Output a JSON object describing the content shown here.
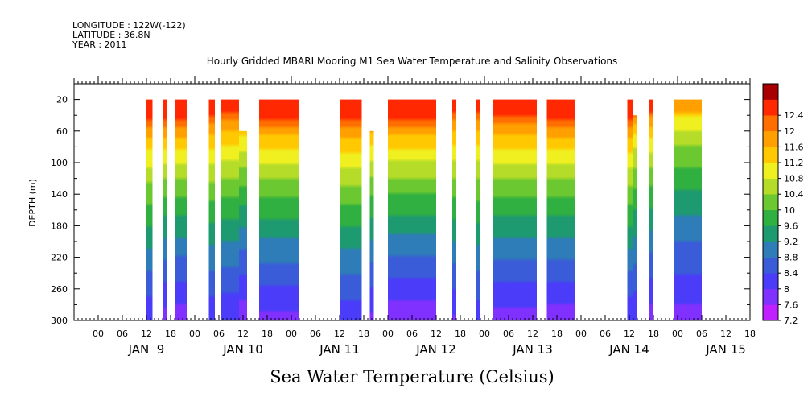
{
  "header": {
    "longitude": "LONGITUDE : 122W(-122)",
    "latitude": "LATITUDE : 36.8N",
    "year": "YEAR : 2011"
  },
  "chart_data": {
    "type": "heatmap",
    "title": "Hourly Gridded MBARI Mooring M1 Sea Water Temperature and Salinity Observations",
    "xlabel": "Sea Water Temperature (Celsius)",
    "ylabel": "DEPTH (m)",
    "x_unit": "hours since JAN 9 00:00",
    "xlim": [
      -6,
      162
    ],
    "ylim": [
      300,
      0
    ],
    "y_ticks": [
      20,
      60,
      100,
      140,
      180,
      220,
      260,
      300
    ],
    "x_hour_labels": [
      "00",
      "06",
      "12",
      "18",
      "00",
      "06",
      "12",
      "18",
      "00",
      "06",
      "12",
      "18",
      "00",
      "06",
      "12",
      "18",
      "00",
      "06",
      "12",
      "18",
      "00",
      "06",
      "12",
      "18",
      "00",
      "06",
      "12",
      "18"
    ],
    "x_day_labels": [
      "JAN  9",
      "JAN 10",
      "JAN 11",
      "JAN 12",
      "JAN 13",
      "JAN 14",
      "JAN 15"
    ],
    "colorbar": {
      "levels": [
        7.2,
        7.6,
        8,
        8.4,
        8.8,
        9.2,
        9.6,
        10,
        10.4,
        10.8,
        11.2,
        11.6,
        12,
        12.4
      ],
      "labels": [
        "7.2",
        "7.6",
        "8",
        "8.4",
        "8.8",
        "9.2",
        "9.6",
        "10",
        "10.4",
        "10.8",
        "11.2",
        "11.6",
        "12",
        "12.4"
      ],
      "colors": [
        "#c020ff",
        "#8030ff",
        "#4a3cf8",
        "#3a5cd8",
        "#2e7cb8",
        "#1e9a70",
        "#30b040",
        "#6cc830",
        "#b4dc28",
        "#f0f020",
        "#ffc800",
        "#ffa000",
        "#ff6e00",
        "#ff2800",
        "#a80000"
      ]
    },
    "segments": [
      {
        "start": 12.0,
        "end": 13.5,
        "top_depth": 20,
        "surface_temp": 12.2
      },
      {
        "start": 16.0,
        "end": 17.0,
        "top_depth": 20,
        "surface_temp": 12.2
      },
      {
        "start": 19.0,
        "end": 22.0,
        "top_depth": 20,
        "surface_temp": 12.2
      },
      {
        "start": 27.5,
        "end": 29.0,
        "top_depth": 20,
        "surface_temp": 12.2
      },
      {
        "start": 30.5,
        "end": 35.0,
        "top_depth": 20,
        "surface_temp": 12.2
      },
      {
        "start": 35.0,
        "end": 37.0,
        "top_depth": 60,
        "surface_temp": 12.0
      },
      {
        "start": 40.0,
        "end": 50.0,
        "top_depth": 20,
        "surface_temp": 12.3
      },
      {
        "start": 60.0,
        "end": 65.5,
        "top_depth": 20,
        "surface_temp": 12.2
      },
      {
        "start": 67.5,
        "end": 68.5,
        "top_depth": 60,
        "surface_temp": 12.0
      },
      {
        "start": 72.0,
        "end": 84.0,
        "top_depth": 20,
        "surface_temp": 12.3
      },
      {
        "start": 88.0,
        "end": 89.0,
        "top_depth": 20,
        "surface_temp": 12.2
      },
      {
        "start": 94.0,
        "end": 95.0,
        "top_depth": 20,
        "surface_temp": 12.2
      },
      {
        "start": 98.0,
        "end": 109.0,
        "top_depth": 20,
        "surface_temp": 12.3
      },
      {
        "start": 111.5,
        "end": 118.5,
        "top_depth": 20,
        "surface_temp": 12.3
      },
      {
        "start": 131.5,
        "end": 133.0,
        "top_depth": 20,
        "surface_temp": 12.2
      },
      {
        "start": 133.0,
        "end": 134.0,
        "top_depth": 40,
        "surface_temp": 11.6
      },
      {
        "start": 137.0,
        "end": 138.0,
        "top_depth": 20,
        "surface_temp": 12.0
      },
      {
        "start": 143.0,
        "end": 150.0,
        "top_depth": 20,
        "surface_temp": 11.2
      }
    ]
  }
}
